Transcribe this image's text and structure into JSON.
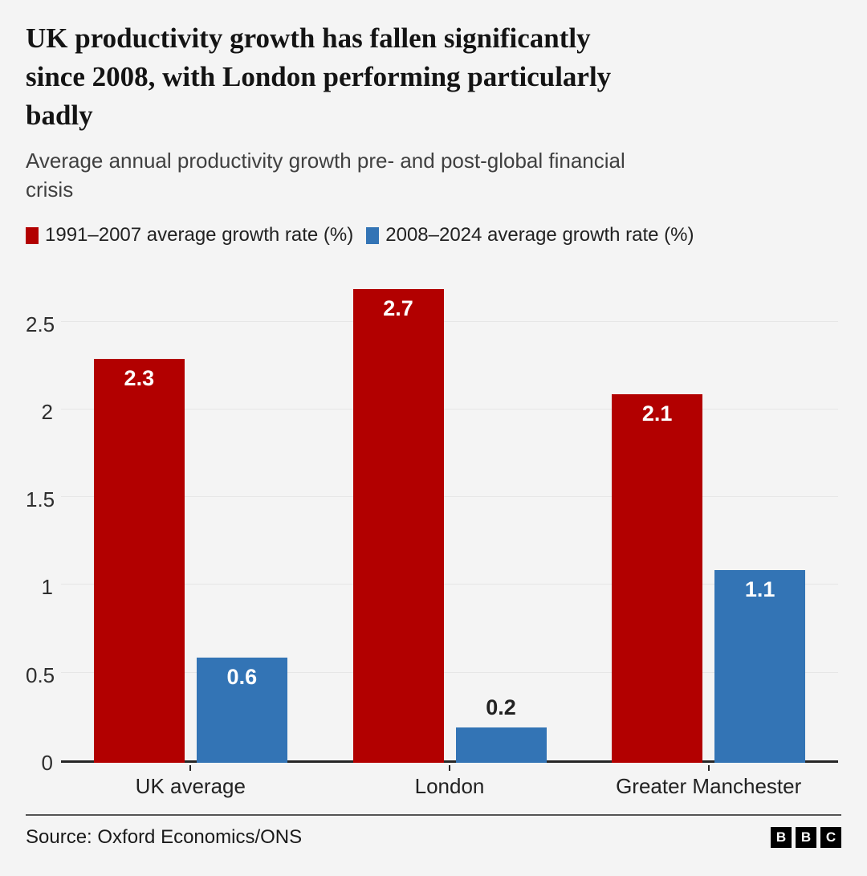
{
  "header": {
    "title_lines": [
      "UK productivity growth has fallen significantly",
      "since 2008, with London performing particularly",
      "badly"
    ],
    "subtitle_lines": [
      "Average annual productivity growth pre- and post-global financial",
      "crisis"
    ]
  },
  "chart_data": {
    "type": "bar",
    "title": "UK productivity growth has fallen significantly since 2008, with London performing particularly badly",
    "subtitle": "Average annual productivity growth pre- and post-global financial crisis",
    "categories": [
      "UK average",
      "London",
      "Greater Manchester"
    ],
    "series": [
      {
        "name": "1991–2007 average growth rate (%)",
        "color": "#b20000",
        "values": [
          2.3,
          2.7,
          2.1
        ],
        "value_labels": [
          "2.3",
          "2.7",
          "2.1"
        ]
      },
      {
        "name": "2008–2024 average growth rate (%)",
        "color": "#3374b5",
        "values": [
          0.6,
          0.2,
          1.1
        ],
        "value_labels": [
          "0.6",
          "0.2",
          "1.1"
        ]
      }
    ],
    "ylim": [
      0,
      2.7
    ],
    "yticks": [
      {
        "label": "0",
        "value": 0
      },
      {
        "label": "0.5",
        "value": 0.5
      },
      {
        "label": "1",
        "value": 1
      },
      {
        "label": "1.5",
        "value": 1.5
      },
      {
        "label": "2",
        "value": 2
      },
      {
        "label": "2.5",
        "value": 2.5
      }
    ],
    "grid": true,
    "legend_position": "top",
    "xlabel": "",
    "ylabel": ""
  },
  "footer": {
    "source": "Source: Oxford Economics/ONS",
    "logo_letters": [
      "B",
      "B",
      "C"
    ]
  },
  "colors": {
    "background": "#f4f4f4",
    "series_red": "#b20000",
    "series_blue": "#3374b5",
    "axis": "#262626",
    "gridline": "#e6e6e6"
  }
}
